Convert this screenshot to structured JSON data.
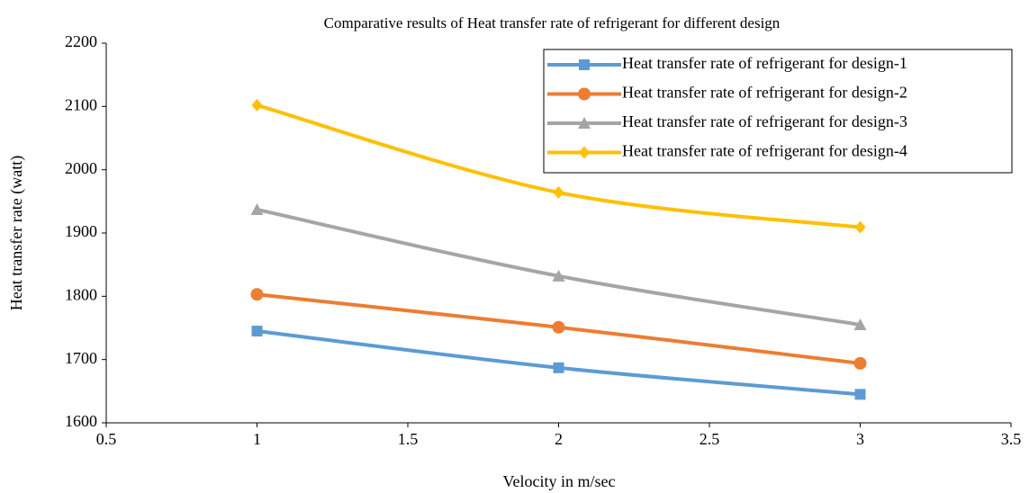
{
  "chart_data": {
    "type": "line",
    "title": "Comparative results of Heat transfer rate of refrigerant for different design",
    "xlabel": "Velocity in m/sec",
    "ylabel": "Heat transfer rate (watt)",
    "x": [
      1,
      2,
      3
    ],
    "xlim": [
      0.5,
      3.5
    ],
    "xticks": [
      0.5,
      1,
      1.5,
      2,
      2.5,
      3,
      3.5
    ],
    "ylim": [
      1600,
      2200
    ],
    "yticks": [
      1600,
      1700,
      1800,
      1900,
      2000,
      2100,
      2200
    ],
    "grid": false,
    "smooth": true,
    "legend": "upper right",
    "series": [
      {
        "name": "Heat transfer rate of refrigerant for design-1",
        "color": "#5b9bd5",
        "marker": "square",
        "values": [
          1745,
          1687,
          1645
        ]
      },
      {
        "name": "Heat transfer rate of refrigerant for design-2",
        "color": "#ed7d31",
        "marker": "circle",
        "values": [
          1803,
          1751,
          1694
        ]
      },
      {
        "name": "Heat transfer rate of refrigerant for design-3",
        "color": "#a5a5a5",
        "marker": "triangle",
        "values": [
          1937,
          1832,
          1755
        ]
      },
      {
        "name": "Heat transfer rate of refrigerant for design-4",
        "color": "#ffc000",
        "marker": "diamond",
        "values": [
          2102,
          1964,
          1909
        ]
      }
    ]
  }
}
